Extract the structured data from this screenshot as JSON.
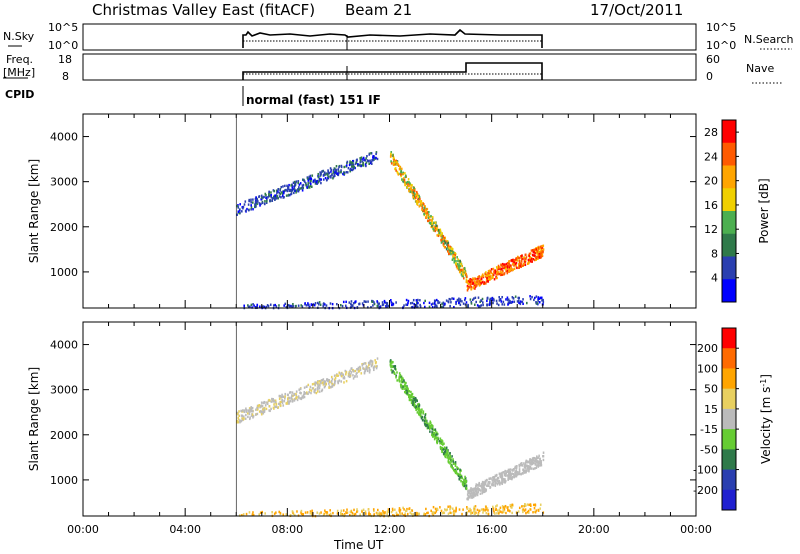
{
  "header": {
    "site": "Christmas Valley East (fitACF)",
    "beam": "Beam 21",
    "date": "17/Oct/2011"
  },
  "strip_labels": {
    "nsky": "N.Sky",
    "nsky_ticks": [
      "10^5",
      "10^0"
    ],
    "nsearch": "N.Search",
    "nsearch_ticks": [
      "10^5",
      "10^0"
    ],
    "freq_line1": "Freq.",
    "freq_line2": "[MHz]",
    "freq_ticks": [
      "18",
      "8"
    ],
    "nave": "Nave",
    "nave_ticks": [
      "60",
      "0"
    ],
    "cpid": "CPID",
    "cpid_text": "normal (fast) 151 IF"
  },
  "colors": {
    "power_scale": [
      "#0000ff",
      "#2a3fb0",
      "#2f7a4a",
      "#4caf50",
      "#f0d000",
      "#ffa500",
      "#ff5a00",
      "#ff0000"
    ],
    "velocity_scale": [
      "#2020d0",
      "#2a3fb0",
      "#2f7a4a",
      "#66cc33",
      "#bbbbbb",
      "#e8d060",
      "#ffa500",
      "#ff6a00",
      "#ff0000"
    ]
  },
  "chart_data": [
    {
      "type": "heatmap",
      "panel": "power",
      "title": "",
      "xlabel": "",
      "ylabel": "Slant Range [km]",
      "y_ticks": [
        "1000",
        "2000",
        "3000",
        "4000"
      ],
      "ylim": [
        200,
        4500
      ],
      "xlim": [
        "00:00",
        "24:00"
      ],
      "colorbar_label": "Power [dB]",
      "colorbar_ticks": [
        "4",
        "8",
        "12",
        "16",
        "20",
        "24",
        "28"
      ],
      "clim": [
        0,
        30
      ],
      "data_window_ut": [
        "06:00",
        "18:00"
      ],
      "features": [
        {
          "name": "F-region echo band",
          "ut": [
            "06:00",
            "11:30"
          ],
          "range_km": [
            2400,
            3600
          ],
          "power_db": [
            2,
            10
          ]
        },
        {
          "name": "descending echo trace",
          "ut": [
            "12:00",
            "15:00"
          ],
          "range_km": [
            3600,
            900
          ],
          "power_db": [
            10,
            26
          ]
        },
        {
          "name": "strong near-range echo",
          "ut": [
            "15:00",
            "18:00"
          ],
          "range_km": [
            700,
            1500
          ],
          "power_db": [
            18,
            30
          ]
        },
        {
          "name": "ground/near-field clutter",
          "ut": [
            "06:00",
            "18:00"
          ],
          "range_km": [
            200,
            400
          ],
          "power_db": [
            2,
            8
          ]
        }
      ]
    },
    {
      "type": "heatmap",
      "panel": "velocity",
      "title": "",
      "xlabel": "Time UT",
      "ylabel": "Slant Range [km]",
      "y_ticks": [
        "1000",
        "2000",
        "3000",
        "4000"
      ],
      "ylim": [
        200,
        4500
      ],
      "x_ticks": [
        "00:00",
        "04:00",
        "08:00",
        "12:00",
        "16:00",
        "20:00",
        "00:00"
      ],
      "colorbar_label": "Velocity [m s^-1]",
      "colorbar_ticks": [
        "200",
        "100",
        "50",
        "15",
        "-15",
        "-50",
        "-100",
        "-200"
      ],
      "clim": [
        -250,
        250
      ],
      "data_window_ut": [
        "06:00",
        "18:00"
      ],
      "features": [
        {
          "name": "F-region echo band",
          "ut": [
            "06:00",
            "11:30"
          ],
          "range_km": [
            2400,
            3600
          ],
          "velocity_ms": [
            -30,
            15
          ]
        },
        {
          "name": "descending echo trace",
          "ut": [
            "12:00",
            "15:00"
          ],
          "range_km": [
            3600,
            900
          ],
          "velocity_ms": [
            20,
            60
          ]
        },
        {
          "name": "near-range echo",
          "ut": [
            "15:00",
            "18:00"
          ],
          "range_km": [
            700,
            1500
          ],
          "velocity_ms": [
            -15,
            15
          ]
        },
        {
          "name": "ground/near-field clutter",
          "ut": [
            "06:00",
            "18:00"
          ],
          "range_km": [
            200,
            400
          ],
          "velocity_ms": [
            -80,
            -20
          ]
        }
      ]
    }
  ]
}
